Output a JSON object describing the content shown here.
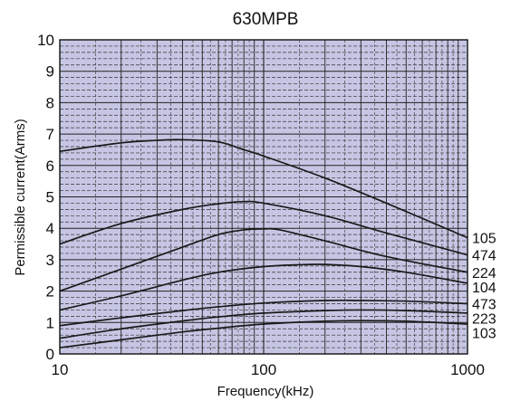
{
  "chart_data": {
    "type": "line",
    "title": "630MPB",
    "xlabel": "Frequency(kHz)",
    "ylabel": "Permissible current(Arms)",
    "x_scale": "log",
    "xlim": [
      10,
      1000
    ],
    "ylim": [
      0,
      10
    ],
    "x_ticks": [
      "10",
      "100",
      "1000"
    ],
    "y_ticks": [
      "0",
      "1",
      "2",
      "3",
      "4",
      "5",
      "6",
      "7",
      "8",
      "9",
      "10"
    ],
    "grid": true,
    "colors": {
      "plot_bg": "#c6c6e4",
      "grid_major": "#222222",
      "grid_minor": "#333333",
      "line": "#1a1a1a"
    },
    "series": [
      {
        "name": "105",
        "x": [
          10,
          20,
          30,
          40,
          60,
          80,
          100,
          200,
          400,
          1000
        ],
        "y": [
          6.45,
          6.72,
          6.8,
          6.82,
          6.75,
          6.5,
          6.3,
          5.6,
          4.8,
          3.7
        ]
      },
      {
        "name": "474",
        "x": [
          10,
          20,
          40,
          60,
          80,
          100,
          200,
          400,
          1000
        ],
        "y": [
          3.5,
          4.15,
          4.6,
          4.78,
          4.85,
          4.8,
          4.4,
          3.85,
          3.15
        ]
      },
      {
        "name": "224",
        "x": [
          10,
          20,
          40,
          60,
          80,
          100,
          120,
          200,
          400,
          1000
        ],
        "y": [
          2.0,
          2.7,
          3.4,
          3.8,
          3.95,
          3.98,
          3.95,
          3.6,
          3.1,
          2.6
        ]
      },
      {
        "name": "104",
        "x": [
          10,
          20,
          40,
          60,
          100,
          150,
          200,
          300,
          500,
          1000
        ],
        "y": [
          1.4,
          1.85,
          2.35,
          2.6,
          2.78,
          2.84,
          2.85,
          2.78,
          2.6,
          2.25
        ]
      },
      {
        "name": "473",
        "x": [
          10,
          20,
          40,
          60,
          100,
          200,
          300,
          500,
          1000
        ],
        "y": [
          0.9,
          1.15,
          1.38,
          1.5,
          1.62,
          1.7,
          1.7,
          1.68,
          1.6
        ]
      },
      {
        "name": "223",
        "x": [
          10,
          20,
          40,
          60,
          100,
          200,
          300,
          500,
          1000
        ],
        "y": [
          0.5,
          0.8,
          1.05,
          1.18,
          1.3,
          1.38,
          1.4,
          1.38,
          1.3
        ]
      },
      {
        "name": "103",
        "x": [
          10,
          20,
          40,
          60,
          100,
          200,
          300,
          500,
          1000
        ],
        "y": [
          0.2,
          0.45,
          0.7,
          0.82,
          0.95,
          1.04,
          1.06,
          1.04,
          0.95
        ]
      }
    ]
  }
}
